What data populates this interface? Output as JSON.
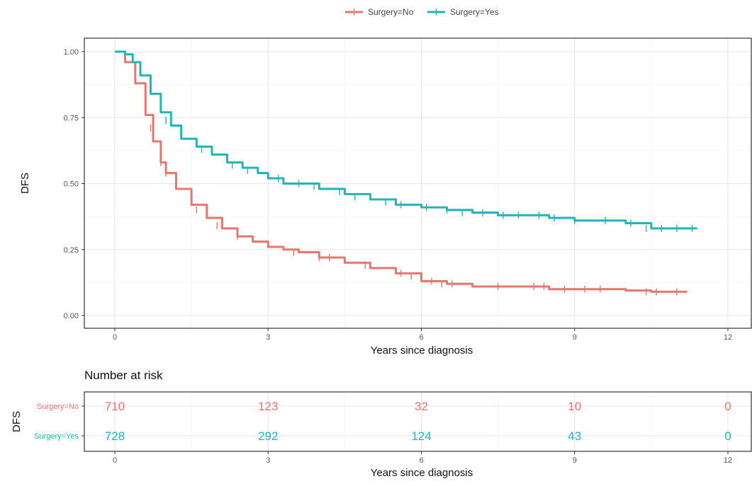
{
  "legend": {
    "items": [
      {
        "label": "Surgery=No",
        "color": "#e8766d"
      },
      {
        "label": "Surgery=Yes",
        "color": "#1fb6bb"
      }
    ]
  },
  "chart_data": [
    {
      "type": "line",
      "ylabel": "DFS",
      "xlabel": "Years since diagnosis",
      "xlim": [
        0,
        12
      ],
      "ylim": [
        0,
        1
      ],
      "x_ticks": [
        0,
        3,
        6,
        9,
        12
      ],
      "x_tick_labels": [
        "0",
        "3",
        "6",
        "9",
        "12"
      ],
      "y_ticks": [
        0,
        0.25,
        0.5,
        0.75,
        1
      ],
      "y_tick_labels": [
        "0.00",
        "0.25",
        "0.50",
        "0.75",
        "1.00"
      ],
      "grid": true,
      "legend_position": "top",
      "series": [
        {
          "name": "Surgery=No",
          "color": "#e8766d",
          "x": [
            0,
            0.2,
            0.4,
            0.6,
            0.75,
            0.9,
            1.0,
            1.2,
            1.5,
            1.8,
            2.1,
            2.4,
            2.7,
            3.0,
            3.3,
            3.6,
            4.0,
            4.5,
            5.0,
            5.5,
            6.0,
            6.5,
            7.0,
            7.5,
            8.0,
            8.5,
            9.0,
            9.5,
            10.0,
            10.5,
            11.2
          ],
          "y": [
            1.0,
            0.96,
            0.88,
            0.76,
            0.66,
            0.58,
            0.54,
            0.48,
            0.42,
            0.37,
            0.33,
            0.3,
            0.28,
            0.26,
            0.25,
            0.24,
            0.22,
            0.2,
            0.18,
            0.16,
            0.13,
            0.12,
            0.11,
            0.11,
            0.11,
            0.1,
            0.1,
            0.1,
            0.095,
            0.09,
            0.09
          ],
          "censor_x": [
            0.7,
            0.9,
            1.0,
            1.6,
            2.0,
            2.4,
            3.5,
            4.0,
            4.2,
            4.9,
            5.6,
            5.8,
            6.2,
            6.4,
            6.6,
            7.5,
            8.2,
            8.4,
            8.8,
            9.2,
            9.5,
            10.4,
            10.6,
            11.0
          ],
          "censor_y": [
            0.71,
            0.58,
            0.54,
            0.4,
            0.34,
            0.3,
            0.24,
            0.22,
            0.22,
            0.19,
            0.16,
            0.15,
            0.13,
            0.12,
            0.12,
            0.11,
            0.11,
            0.11,
            0.1,
            0.1,
            0.1,
            0.09,
            0.09,
            0.09
          ]
        },
        {
          "name": "Surgery=Yes",
          "color": "#1fb6bb",
          "x": [
            0,
            0.2,
            0.35,
            0.5,
            0.7,
            0.9,
            1.1,
            1.3,
            1.6,
            1.9,
            2.2,
            2.5,
            2.8,
            3.0,
            3.3,
            3.6,
            4.0,
            4.5,
            5.0,
            5.5,
            6.0,
            6.5,
            7.0,
            7.5,
            8.0,
            8.5,
            9.0,
            9.5,
            10.0,
            10.5,
            11.4
          ],
          "y": [
            1.0,
            0.99,
            0.96,
            0.91,
            0.84,
            0.77,
            0.72,
            0.67,
            0.64,
            0.61,
            0.58,
            0.56,
            0.54,
            0.52,
            0.5,
            0.5,
            0.48,
            0.46,
            0.44,
            0.42,
            0.41,
            0.4,
            0.39,
            0.38,
            0.38,
            0.37,
            0.36,
            0.36,
            0.35,
            0.33,
            0.33
          ],
          "censor_x": [
            1.0,
            1.7,
            2.3,
            2.6,
            3.2,
            3.6,
            3.9,
            4.4,
            4.7,
            5.3,
            5.6,
            6.1,
            6.5,
            6.8,
            7.2,
            7.6,
            7.9,
            8.3,
            8.6,
            9.0,
            9.6,
            10.1,
            10.4,
            10.7,
            11.0,
            11.3
          ],
          "censor_y": [
            0.74,
            0.63,
            0.57,
            0.55,
            0.52,
            0.5,
            0.49,
            0.47,
            0.45,
            0.43,
            0.42,
            0.41,
            0.4,
            0.39,
            0.39,
            0.38,
            0.38,
            0.38,
            0.37,
            0.36,
            0.36,
            0.35,
            0.33,
            0.33,
            0.33,
            0.33
          ]
        }
      ]
    },
    {
      "type": "table",
      "title": "Number at risk",
      "ylabel": "DFS",
      "xlabel": "Years since diagnosis",
      "xlim": [
        0,
        12
      ],
      "x_ticks": [
        0,
        3,
        6,
        9,
        12
      ],
      "x_tick_labels": [
        "0",
        "3",
        "6",
        "9",
        "12"
      ],
      "rows": [
        {
          "name": "Surgery=No",
          "color": "#e8766d",
          "x": [
            0,
            3,
            6,
            9,
            12
          ],
          "values": [
            "710",
            "123",
            "32",
            "10",
            "0"
          ]
        },
        {
          "name": "Surgery=Yes",
          "color": "#1fb6bb",
          "x": [
            0,
            3,
            6,
            9,
            12
          ],
          "values": [
            "728",
            "292",
            "124",
            "43",
            "0"
          ]
        }
      ]
    }
  ]
}
